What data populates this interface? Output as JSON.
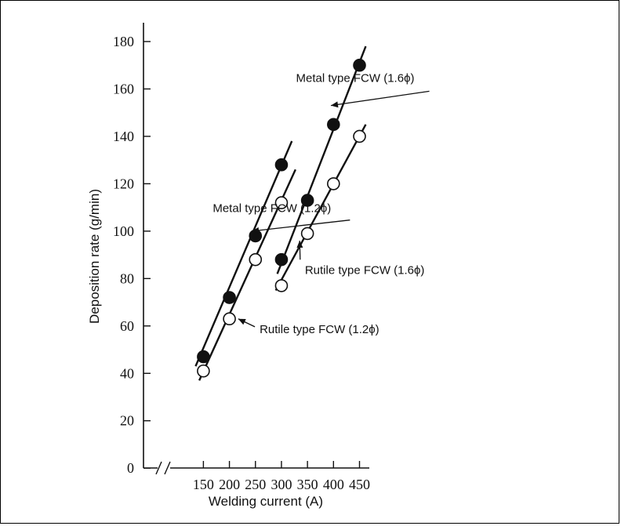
{
  "chart_data": {
    "type": "scatter",
    "title": "",
    "xlabel": "Welding current (A)",
    "ylabel": "Deposition rate (g/min)",
    "xlim": [
      120,
      470
    ],
    "ylim": [
      0,
      190
    ],
    "x_ticks": [
      150,
      200,
      250,
      300,
      350,
      400,
      450
    ],
    "y_ticks": [
      0,
      20,
      40,
      60,
      80,
      100,
      120,
      140,
      160,
      180
    ],
    "axis_break": true,
    "grid": false,
    "series": [
      {
        "name": "Metal type FCW (1.2ϕ)",
        "marker": "filled",
        "x": [
          150,
          200,
          250,
          300
        ],
        "y": [
          47,
          72,
          98,
          128
        ],
        "fit": [
          [
            135,
            43
          ],
          [
            320,
            138
          ]
        ]
      },
      {
        "name": "Rutile type FCW (1.2ϕ)",
        "marker": "open",
        "x": [
          150,
          200,
          250,
          300
        ],
        "y": [
          41,
          63,
          88,
          112
        ],
        "fit": [
          [
            142,
            37
          ],
          [
            327,
            126
          ]
        ]
      },
      {
        "name": "Metal type FCW (1.6ϕ)",
        "marker": "filled",
        "x": [
          300,
          350,
          400,
          450
        ],
        "y": [
          88,
          113,
          145,
          170
        ],
        "fit": [
          [
            292,
            82
          ],
          [
            462,
            178
          ]
        ]
      },
      {
        "name": "Rutile type FCW (1.6ϕ)",
        "marker": "open",
        "x": [
          300,
          350,
          400,
          450
        ],
        "y": [
          77,
          99,
          120,
          140
        ],
        "fit": [
          [
            289,
            75
          ],
          [
            462,
            145
          ]
        ]
      }
    ],
    "annotations": [
      {
        "text": "Metal type FCW (1.2ϕ)",
        "x": 168,
        "y": 108,
        "arrow_to": [
          243,
          100
        ]
      },
      {
        "text": "Rutile type FCW (1.2ϕ)",
        "x": 258,
        "y": 57,
        "arrow_to": [
          217,
          63
        ]
      },
      {
        "text": "Metal type FCW (1.6ϕ)",
        "x": 328,
        "y": 163,
        "arrow_to": [
          395,
          153
        ]
      },
      {
        "text": "Rutile type FCW (1.6ϕ)",
        "x": 345,
        "y": 82,
        "arrow_to": [
          335,
          96
        ]
      }
    ]
  }
}
